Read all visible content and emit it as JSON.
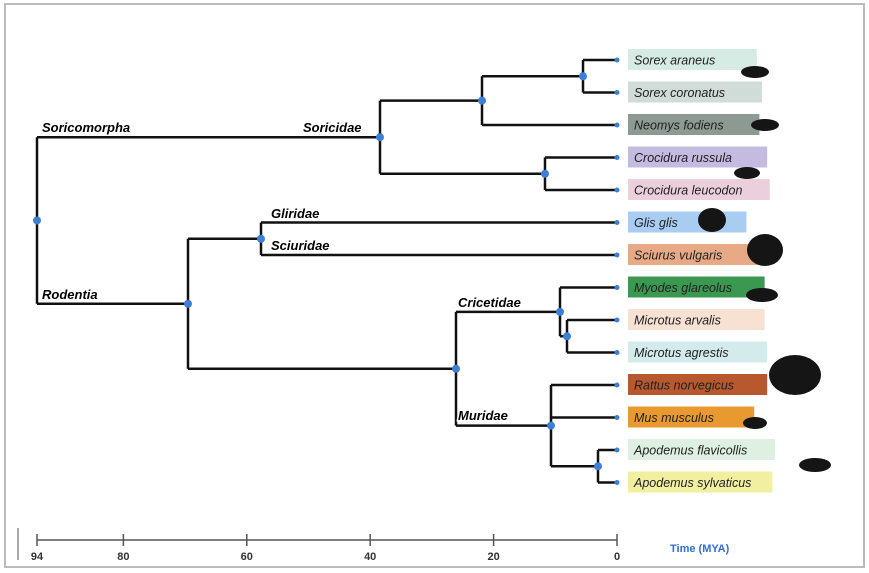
{
  "clades": [
    {
      "label": "Soricomorpha"
    },
    {
      "label": "Soricidae"
    },
    {
      "label": "Gliridae"
    },
    {
      "label": "Sciuridae"
    },
    {
      "label": "Rodentia"
    },
    {
      "label": "Cricetidae"
    },
    {
      "label": "Muridae"
    }
  ],
  "leaves": [
    {
      "label": "Sorex araneus",
      "color": "#d6ebe4"
    },
    {
      "label": "Sorex coronatus",
      "color": "#cfdcd8"
    },
    {
      "label": "Neomys fodiens",
      "color": "#8d9a92"
    },
    {
      "label": "Crocidura russula",
      "color": "#c5bbe0"
    },
    {
      "label": "Crocidura leucodon",
      "color": "#eccfdd"
    },
    {
      "label": "Glis glis",
      "color": "#a8ccf2"
    },
    {
      "label": "Sciurus vulgaris",
      "color": "#e8aa86"
    },
    {
      "label": "Myodes glareolus",
      "color": "#3a9850"
    },
    {
      "label": "Microtus arvalis",
      "color": "#f6e1d2"
    },
    {
      "label": "Microtus agrestis",
      "color": "#d3ebeb"
    },
    {
      "label": "Rattus norvegicus",
      "color": "#b8582e"
    },
    {
      "label": "Mus musculus",
      "color": "#e89a30"
    },
    {
      "label": "Apodemus flavicollis",
      "color": "#def0e2"
    },
    {
      "label": "Apodemus sylvaticus",
      "color": "#f1f0a0"
    }
  ],
  "axis": {
    "ticks": [
      94,
      80,
      60,
      40,
      20,
      0
    ],
    "label": "Time (MYA)"
  }
}
